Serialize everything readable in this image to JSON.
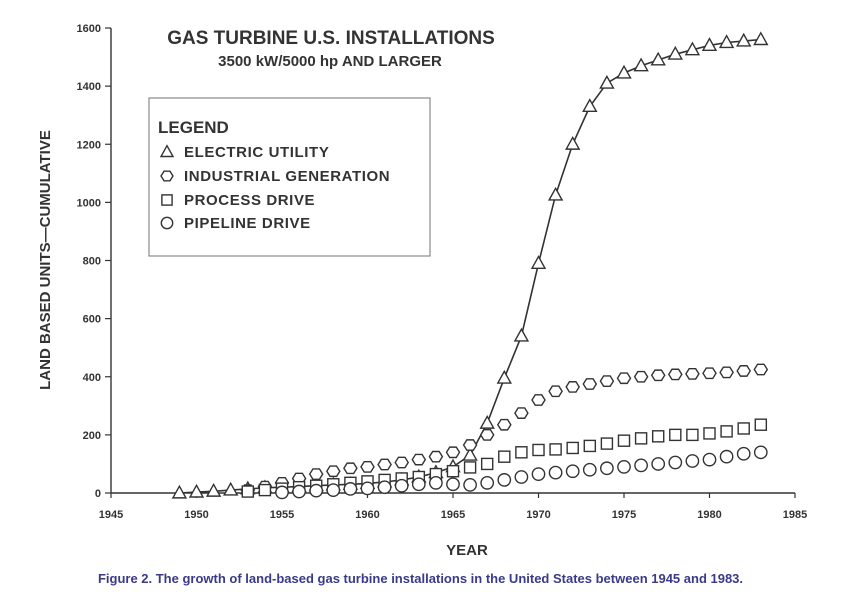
{
  "chart_data": {
    "type": "line",
    "title": "GAS TURBINE U.S. INSTALLATIONS",
    "subtitle": "3500 kW/5000 hp AND LARGER",
    "xlabel": "YEAR",
    "ylabel": "LAND BASED UNITS—CUMULATIVE",
    "xlim": [
      1945,
      1985
    ],
    "ylim": [
      0,
      1600
    ],
    "xticks": [
      1945,
      1950,
      1955,
      1960,
      1965,
      1970,
      1975,
      1980,
      1985
    ],
    "yticks": [
      0,
      200,
      400,
      600,
      800,
      1000,
      1200,
      1400,
      1600
    ],
    "legend_title": "LEGEND",
    "legend_position": "upper-left",
    "series": [
      {
        "name": "ELECTRIC UTILITY",
        "marker": "triangle",
        "x": [
          1949,
          1950,
          1951,
          1952,
          1953,
          1954,
          1955,
          1956,
          1957,
          1958,
          1959,
          1960,
          1961,
          1962,
          1963,
          1964,
          1965,
          1966,
          1967,
          1968,
          1969,
          1970,
          1971,
          1972,
          1973,
          1974,
          1975,
          1976,
          1977,
          1978,
          1979,
          1980,
          1981,
          1982,
          1983
        ],
        "y": [
          0,
          3,
          6,
          10,
          14,
          18,
          20,
          22,
          25,
          28,
          30,
          33,
          38,
          45,
          55,
          70,
          90,
          130,
          240,
          395,
          540,
          790,
          1025,
          1200,
          1330,
          1410,
          1445,
          1470,
          1490,
          1510,
          1525,
          1540,
          1550,
          1555,
          1560
        ]
      },
      {
        "name": "INDUSTRIAL GENERATION",
        "marker": "hexagon",
        "x": [
          1953,
          1954,
          1955,
          1956,
          1957,
          1958,
          1959,
          1960,
          1961,
          1962,
          1963,
          1964,
          1965,
          1966,
          1967,
          1968,
          1969,
          1970,
          1971,
          1972,
          1973,
          1974,
          1975,
          1976,
          1977,
          1978,
          1979,
          1980,
          1981,
          1982,
          1983
        ],
        "y": [
          10,
          22,
          35,
          50,
          65,
          75,
          85,
          90,
          98,
          105,
          115,
          125,
          140,
          165,
          200,
          235,
          275,
          320,
          350,
          365,
          375,
          385,
          395,
          400,
          405,
          408,
          410,
          412,
          415,
          420,
          425
        ]
      },
      {
        "name": "PROCESS DRIVE",
        "marker": "square",
        "x": [
          1953,
          1954,
          1955,
          1956,
          1957,
          1958,
          1959,
          1960,
          1961,
          1962,
          1963,
          1964,
          1965,
          1966,
          1967,
          1968,
          1969,
          1970,
          1971,
          1972,
          1973,
          1974,
          1975,
          1976,
          1977,
          1978,
          1979,
          1980,
          1981,
          1982,
          1983
        ],
        "y": [
          5,
          10,
          15,
          20,
          25,
          30,
          35,
          40,
          45,
          50,
          55,
          65,
          75,
          88,
          100,
          125,
          140,
          148,
          150,
          155,
          162,
          170,
          180,
          188,
          195,
          200,
          200,
          205,
          212,
          222,
          235
        ]
      },
      {
        "name": "PIPELINE DRIVE",
        "marker": "circle",
        "x": [
          1955,
          1956,
          1957,
          1958,
          1959,
          1960,
          1961,
          1962,
          1963,
          1964,
          1965,
          1966,
          1967,
          1968,
          1969,
          1970,
          1971,
          1972,
          1973,
          1974,
          1975,
          1976,
          1977,
          1978,
          1979,
          1980,
          1981,
          1982,
          1983
        ],
        "y": [
          2,
          5,
          8,
          10,
          14,
          16,
          20,
          25,
          30,
          35,
          30,
          28,
          35,
          45,
          55,
          65,
          70,
          75,
          80,
          85,
          90,
          95,
          100,
          105,
          110,
          115,
          125,
          135,
          140
        ]
      }
    ]
  },
  "caption": "Figure 2. The growth of land-based gas turbine installations in the United States between 1945 and 1983."
}
